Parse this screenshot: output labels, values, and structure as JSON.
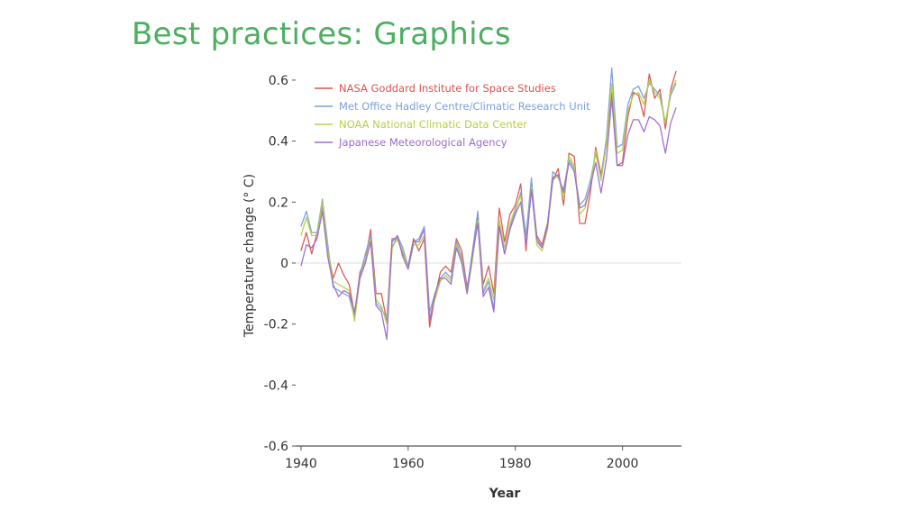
{
  "slide": {
    "title": "Best practices: Graphics"
  },
  "chart_data": {
    "type": "line",
    "title": "",
    "xlabel": "Year",
    "ylabel": "Temperature change (° C)",
    "xlim": [
      1939,
      2011
    ],
    "ylim": [
      -0.6,
      0.65
    ],
    "xticks": [
      1940,
      1960,
      1980,
      2000
    ],
    "yticks": [
      -0.6,
      -0.4,
      -0.2,
      0,
      0.2,
      0.4,
      0.6
    ],
    "ytick_labels": [
      "-0.6",
      "-0.4",
      "-0.2",
      "0",
      "0.2",
      "0.4",
      "0.6"
    ],
    "zero_line": true,
    "legend": "top-left",
    "x": [
      1940,
      1941,
      1942,
      1943,
      1944,
      1945,
      1946,
      1947,
      1948,
      1949,
      1950,
      1951,
      1952,
      1953,
      1954,
      1955,
      1956,
      1957,
      1958,
      1959,
      1960,
      1961,
      1962,
      1963,
      1964,
      1965,
      1966,
      1967,
      1968,
      1969,
      1970,
      1971,
      1972,
      1973,
      1974,
      1975,
      1976,
      1977,
      1978,
      1979,
      1980,
      1981,
      1982,
      1983,
      1984,
      1985,
      1986,
      1987,
      1988,
      1989,
      1990,
      1991,
      1992,
      1993,
      1994,
      1995,
      1996,
      1997,
      1998,
      1999,
      2000,
      2001,
      2002,
      2003,
      2004,
      2005,
      2006,
      2007,
      2008,
      2009,
      2010
    ],
    "series": [
      {
        "name": "NASA Goddard Institute for Space Studies",
        "color": "#d9534f",
        "values": [
          0.04,
          0.1,
          0.03,
          0.1,
          0.19,
          0.04,
          -0.05,
          0.0,
          -0.04,
          -0.07,
          -0.17,
          -0.03,
          0.01,
          0.11,
          -0.1,
          -0.1,
          -0.19,
          0.08,
          0.08,
          0.03,
          -0.01,
          0.08,
          0.04,
          0.08,
          -0.21,
          -0.11,
          -0.03,
          -0.01,
          -0.03,
          0.08,
          0.04,
          -0.08,
          0.02,
          0.16,
          -0.07,
          -0.01,
          -0.1,
          0.18,
          0.07,
          0.16,
          0.19,
          0.26,
          0.04,
          0.26,
          0.09,
          0.06,
          0.13,
          0.27,
          0.31,
          0.19,
          0.36,
          0.35,
          0.13,
          0.13,
          0.23,
          0.38,
          0.29,
          0.39,
          0.56,
          0.32,
          0.33,
          0.48,
          0.56,
          0.55,
          0.48,
          0.62,
          0.54,
          0.57,
          0.44,
          0.57,
          0.63
        ]
      },
      {
        "name": "Met Office Hadley Centre/Climatic Research Unit",
        "color": "#7b9fd9",
        "values": [
          0.12,
          0.17,
          0.1,
          0.1,
          0.21,
          0.06,
          -0.08,
          -0.09,
          -0.1,
          -0.11,
          -0.18,
          -0.04,
          0.03,
          0.09,
          -0.13,
          -0.15,
          -0.18,
          0.05,
          0.09,
          0.05,
          -0.01,
          0.07,
          0.08,
          0.12,
          -0.16,
          -0.1,
          -0.05,
          -0.03,
          -0.05,
          0.07,
          0.02,
          -0.09,
          0.04,
          0.17,
          -0.1,
          -0.06,
          -0.15,
          0.12,
          0.03,
          0.12,
          0.17,
          0.23,
          0.09,
          0.28,
          0.07,
          0.05,
          0.12,
          0.3,
          0.28,
          0.24,
          0.34,
          0.31,
          0.19,
          0.21,
          0.27,
          0.36,
          0.28,
          0.41,
          0.64,
          0.38,
          0.39,
          0.52,
          0.57,
          0.58,
          0.54,
          0.59,
          0.57,
          0.55,
          0.46,
          0.55,
          0.59
        ]
      },
      {
        "name": "NOAA National Climatic Data Center",
        "color": "#b5d045",
        "values": [
          0.09,
          0.15,
          0.09,
          0.09,
          0.2,
          0.04,
          -0.06,
          -0.07,
          -0.08,
          -0.09,
          -0.19,
          -0.05,
          0.01,
          0.08,
          -0.12,
          -0.14,
          -0.2,
          0.05,
          0.08,
          0.04,
          -0.02,
          0.06,
          0.06,
          0.09,
          -0.18,
          -0.12,
          -0.06,
          -0.04,
          -0.06,
          0.06,
          0.01,
          -0.1,
          0.01,
          0.14,
          -0.09,
          -0.05,
          -0.12,
          0.14,
          0.05,
          0.13,
          0.18,
          0.22,
          0.06,
          0.25,
          0.06,
          0.04,
          0.11,
          0.27,
          0.29,
          0.21,
          0.35,
          0.32,
          0.16,
          0.18,
          0.25,
          0.37,
          0.27,
          0.39,
          0.59,
          0.36,
          0.37,
          0.5,
          0.55,
          0.56,
          0.52,
          0.6,
          0.56,
          0.54,
          0.46,
          0.56,
          0.6
        ]
      },
      {
        "name": "Japanese Meteorological Agency",
        "color": "#9b6bcf",
        "values": [
          -0.01,
          0.06,
          0.05,
          0.08,
          0.17,
          0.02,
          -0.07,
          -0.11,
          -0.09,
          -0.1,
          -0.16,
          -0.05,
          0.0,
          0.07,
          -0.14,
          -0.16,
          -0.25,
          0.07,
          0.09,
          0.02,
          -0.02,
          0.07,
          0.07,
          0.11,
          -0.19,
          -0.1,
          -0.05,
          -0.05,
          -0.07,
          0.05,
          0.0,
          -0.1,
          0.03,
          0.13,
          -0.11,
          -0.08,
          -0.16,
          0.12,
          0.03,
          0.11,
          0.16,
          0.2,
          0.06,
          0.24,
          0.08,
          0.05,
          0.12,
          0.28,
          0.29,
          0.23,
          0.33,
          0.3,
          0.18,
          0.19,
          0.25,
          0.33,
          0.23,
          0.34,
          0.54,
          0.32,
          0.32,
          0.42,
          0.47,
          0.47,
          0.43,
          0.48,
          0.47,
          0.45,
          0.36,
          0.46,
          0.51
        ]
      }
    ]
  }
}
